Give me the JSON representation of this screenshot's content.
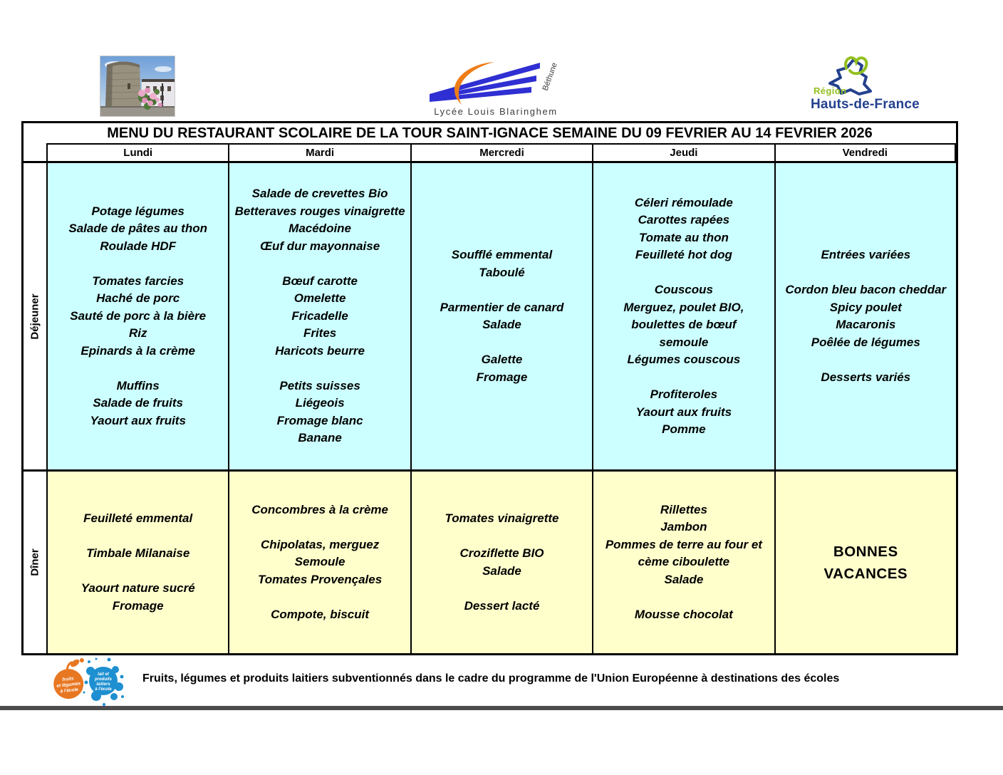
{
  "title": "MENU DU RESTAURANT SCOLAIRE DE LA TOUR SAINT-IGNACE SEMAINE DU  09 FEVRIER AU 14 FEVRIER 2026",
  "logos": {
    "school": {
      "name": "Lycée Louis Blaringhem",
      "city": "Béthune"
    },
    "region": {
      "line1": "Région",
      "line2": "Hauts-de-France"
    },
    "fruit_lines": [
      "fruits",
      "et légumes",
      "à l'école"
    ],
    "milk_lines": [
      "lait et",
      "produits",
      "laitiers",
      "à l'école"
    ]
  },
  "table": {
    "days": [
      "Lundi",
      "Mardi",
      "Mercredi",
      "Jeudi",
      "Vendredi"
    ],
    "row_labels": {
      "lunch": "Déjeuner",
      "dinner": "Dîner"
    },
    "lunch": [
      [
        "Potage légumes",
        "Salade de pâtes au thon",
        "Roulade HDF",
        "",
        "Tomates farcies",
        "Haché de porc",
        "Sauté de porc à la bière",
        "Riz",
        "Epinards à la crème",
        "",
        "Muffins",
        "Salade de fruits",
        "Yaourt aux fruits"
      ],
      [
        "Salade de crevettes Bio",
        "Betteraves rouges vinaigrette",
        "Macédoine",
        "Œuf dur mayonnaise",
        "",
        "Bœuf carotte",
        "Omelette",
        "Fricadelle",
        "Frites",
        "Haricots beurre",
        "",
        "Petits suisses",
        "Liégeois",
        "Fromage blanc",
        "Banane"
      ],
      [
        "Soufflé emmental",
        "Taboulé",
        "",
        "Parmentier de canard",
        "Salade",
        "",
        "Galette",
        "Fromage"
      ],
      [
        "Céleri rémoulade",
        "Carottes rapées",
        "Tomate au thon",
        "Feuilleté hot dog",
        "",
        "Couscous",
        "Merguez, poulet BIO, boulettes de bœuf",
        "semoule",
        "Légumes couscous",
        "",
        "Profiteroles",
        "Yaourt aux fruits",
        "Pomme"
      ],
      [
        "Entrées variées",
        "",
        "Cordon bleu bacon cheddar",
        "Spicy poulet",
        "Macaronis",
        "Poêlée de légumes",
        "",
        "Desserts variés"
      ]
    ],
    "dinner": [
      [
        "Feuilleté emmental",
        "",
        "Timbale Milanaise",
        "",
        "Yaourt nature sucré",
        "Fromage"
      ],
      [
        "Concombres à la crème",
        "",
        "Chipolatas, merguez",
        "Semoule",
        "Tomates Provençales",
        "",
        "Compote, biscuit"
      ],
      [
        "Tomates vinaigrette",
        "",
        "Croziflette BIO",
        "Salade",
        "",
        "Dessert lacté"
      ],
      [
        "Rillettes",
        "Jambon",
        "Pommes de terre au four  et cème ciboulette",
        "Salade",
        "",
        "Mousse chocolat"
      ],
      [
        "BONNES",
        "VACANCES"
      ]
    ]
  },
  "footer": {
    "note": "Fruits, légumes et produits laitiers subventionnés dans le cadre du programme de l'Union Européenne à destinations des écoles"
  },
  "colors": {
    "lunch_bg": "#CCFFFF",
    "dinner_bg": "#FFFFCC",
    "stripe_blue": "#2f2fd3",
    "swoosh_orange": "#ee7d18",
    "region_green": "#93c01f",
    "region_navy": "#24418e",
    "fruit_orange": "#e87722",
    "milk_blue": "#1e8fd0"
  }
}
